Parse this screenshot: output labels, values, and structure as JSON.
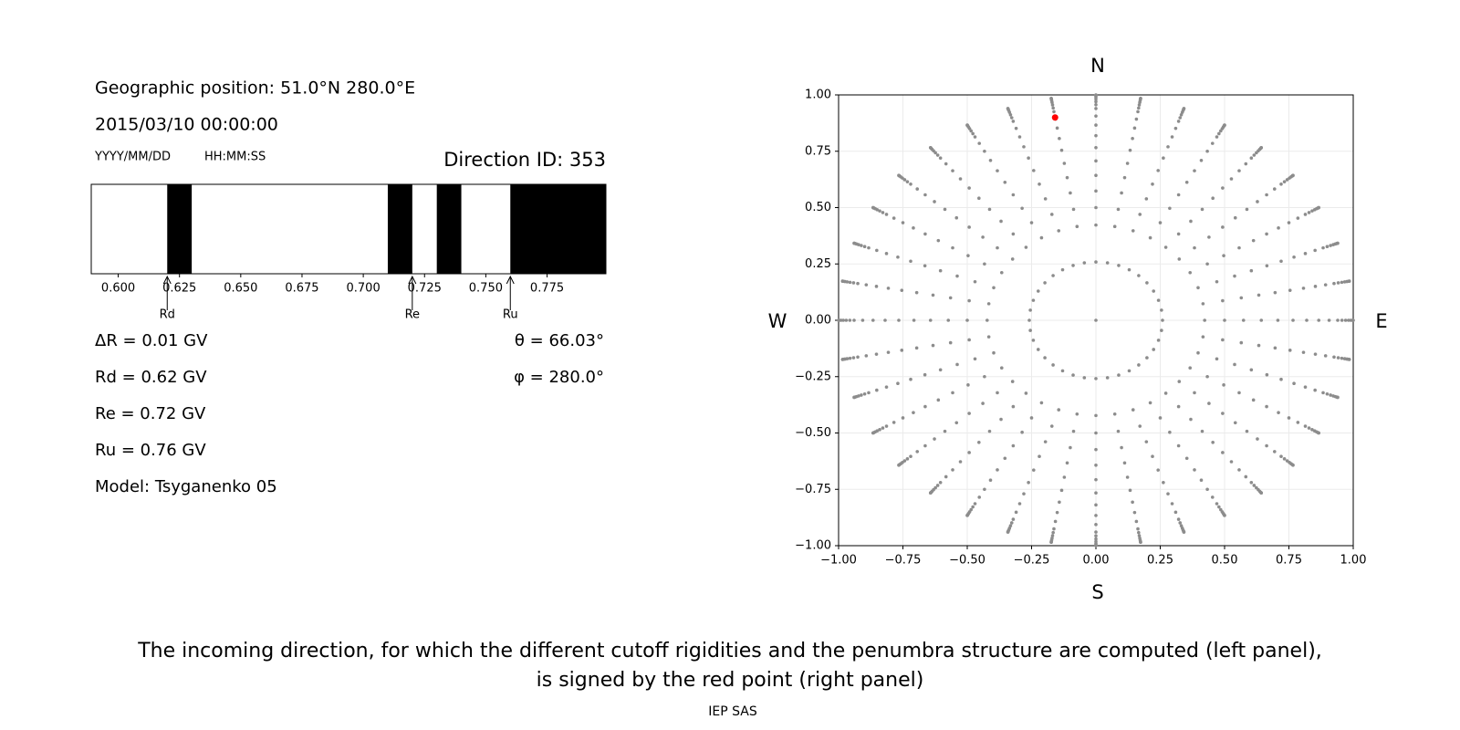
{
  "header": {
    "position": "Geographic position: 51.0°N 280.0°E",
    "datetime": "2015/03/10 00:00:00",
    "date_format": "YYYY/MM/DD",
    "time_format": "HH:MM:SS",
    "direction_id": "Direction ID: 353"
  },
  "chart_data": [
    {
      "type": "penumbra",
      "xlim": [
        0.589,
        0.799
      ],
      "xticks": [
        {
          "value": 0.6,
          "label": "0.600"
        },
        {
          "value": 0.625,
          "label": "0.625"
        },
        {
          "value": 0.65,
          "label": "0.650"
        },
        {
          "value": 0.675,
          "label": "0.675"
        },
        {
          "value": 0.7,
          "label": "0.700"
        },
        {
          "value": 0.725,
          "label": "0.725"
        },
        {
          "value": 0.75,
          "label": "0.750"
        },
        {
          "value": 0.775,
          "label": "0.775"
        }
      ],
      "forbidden": [
        [
          0.62,
          0.63
        ],
        [
          0.71,
          0.72
        ],
        [
          0.73,
          0.74
        ],
        [
          0.76,
          0.799
        ]
      ],
      "color": "#000000",
      "step_label": "ΔR = 0.01 GV",
      "cutoffs": [
        {
          "name": "Rd",
          "value": 0.62,
          "label": "Rd = 0.62 GV"
        },
        {
          "name": "Re",
          "value": 0.72,
          "label": "Re = 0.72 GV"
        },
        {
          "name": "Ru",
          "value": 0.76,
          "label": "Ru = 0.76 GV"
        }
      ],
      "model": "Model: Tsyganenko 05"
    },
    {
      "type": "scatter",
      "xlim": [
        -1,
        1
      ],
      "ylim": [
        -1,
        1
      ],
      "xticks": [
        {
          "value": -1,
          "label": "−1.00"
        },
        {
          "value": -0.75,
          "label": "−0.75"
        },
        {
          "value": -0.5,
          "label": "−0.50"
        },
        {
          "value": -0.25,
          "label": "−0.25"
        },
        {
          "value": 0,
          "label": "0.00"
        },
        {
          "value": 0.25,
          "label": "0.25"
        },
        {
          "value": 0.5,
          "label": "0.50"
        },
        {
          "value": 0.75,
          "label": "0.75"
        },
        {
          "value": 1,
          "label": "1.00"
        }
      ],
      "yticks": [
        {
          "value": -1,
          "label": "−1.00"
        },
        {
          "value": -0.75,
          "label": "−0.75"
        },
        {
          "value": -0.5,
          "label": "−0.50"
        },
        {
          "value": -0.25,
          "label": "−0.25"
        },
        {
          "value": 0,
          "label": "0.00"
        },
        {
          "value": 0.25,
          "label": "0.25"
        },
        {
          "value": 0.5,
          "label": "0.50"
        },
        {
          "value": 0.75,
          "label": "0.75"
        },
        {
          "value": 1,
          "label": "1.00"
        }
      ],
      "grid": true,
      "color": "#8c8c8c",
      "directions": {
        "zenith": [
          0,
          15,
          25,
          30,
          35,
          40,
          45,
          50,
          55,
          60,
          65,
          70,
          73,
          76,
          79,
          82,
          85,
          88,
          90
        ],
        "azimuth": [
          0,
          10,
          20,
          30,
          40,
          50,
          60,
          70,
          80,
          90,
          100,
          110,
          120,
          130,
          140,
          150,
          160,
          170,
          180,
          190,
          200,
          210,
          220,
          230,
          240,
          250,
          260,
          270,
          280,
          290,
          300,
          310,
          320,
          330,
          340,
          350
        ]
      },
      "selected": {
        "theta": 66.03,
        "phi": 280.0,
        "theta_label": "θ = 66.03°",
        "phi_label": "φ = 280.0°",
        "color": "#ff0000"
      },
      "compass": {
        "top": "N",
        "bottom": "S",
        "left": "W",
        "right": "E"
      }
    }
  ],
  "caption": [
    "The incoming direction, for which the different cutoff rigidities and the penumbra structure are computed (left panel),",
    "is signed by the red point (right panel)"
  ],
  "footer": "IEP SAS"
}
